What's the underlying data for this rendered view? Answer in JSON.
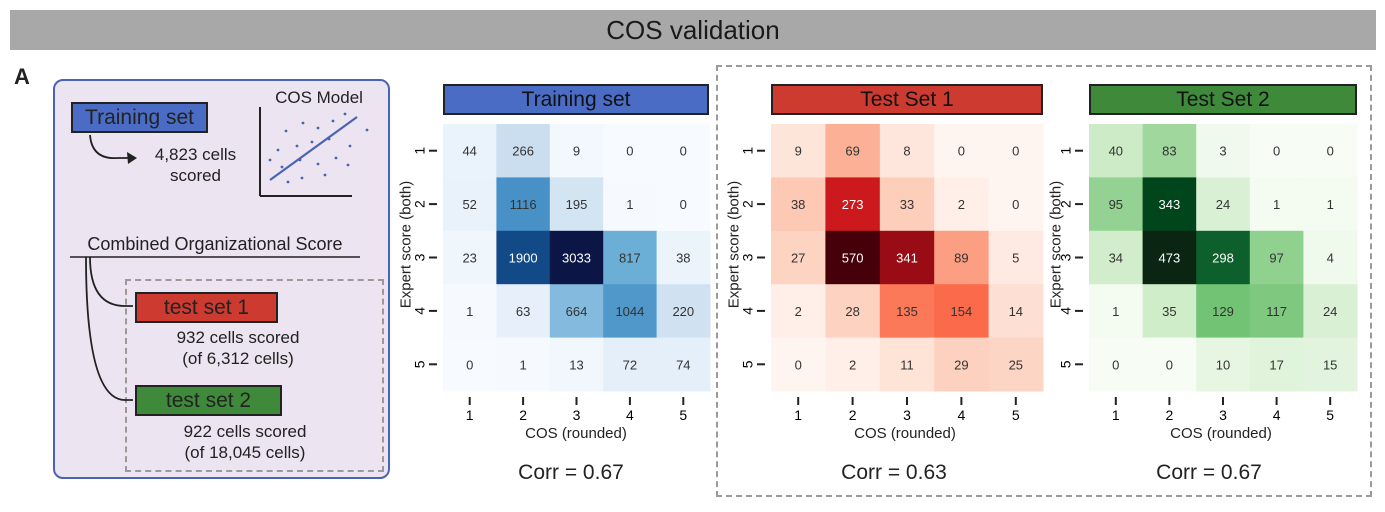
{
  "header": {
    "title": "COS validation"
  },
  "panel_label": "A",
  "left": {
    "training_label": "Training set",
    "training_cells": "4,823 cells",
    "training_scored": "scored",
    "model_label": "COS Model",
    "combined_label": "Combined Organizational Score",
    "test1_label": "test set 1",
    "test1_cells": "932 cells scored",
    "test1_of": "(of 6,312 cells)",
    "test2_label": "test set 2",
    "test2_cells": "922 cells scored",
    "test2_of": "(of 18,045 cells)",
    "colors": {
      "panel_bg": "#ece4f1",
      "panel_border": "#4a63b5",
      "training": "#4a6cc4",
      "test1": "#cc3a30",
      "test2": "#3f8a3a"
    }
  },
  "chart_data": [
    {
      "type": "heatmap",
      "title": "Training set",
      "xlabel": "COS (rounded)",
      "ylabel": "Expert score (both)",
      "x_categories": [
        "1",
        "2",
        "3",
        "4",
        "5"
      ],
      "y_categories": [
        "1",
        "2",
        "3",
        "4",
        "5"
      ],
      "values": [
        [
          44,
          266,
          9,
          0,
          0
        ],
        [
          52,
          1116,
          195,
          1,
          0
        ],
        [
          23,
          1900,
          3033,
          817,
          38
        ],
        [
          1,
          63,
          664,
          1044,
          220
        ],
        [
          0,
          1,
          13,
          72,
          74
        ]
      ],
      "annotation": "Corr = 0.67",
      "title_color": "#4a6cc4",
      "colormap": "Blues"
    },
    {
      "type": "heatmap",
      "title": "Test Set 1",
      "xlabel": "COS (rounded)",
      "ylabel": "Expert score (both)",
      "x_categories": [
        "1",
        "2",
        "3",
        "4",
        "5"
      ],
      "y_categories": [
        "1",
        "2",
        "3",
        "4",
        "5"
      ],
      "values": [
        [
          9,
          69,
          8,
          0,
          0
        ],
        [
          38,
          273,
          33,
          2,
          0
        ],
        [
          27,
          570,
          341,
          89,
          5
        ],
        [
          2,
          28,
          135,
          154,
          14
        ],
        [
          0,
          2,
          11,
          29,
          25
        ]
      ],
      "annotation": "Corr = 0.63",
      "title_color": "#cc3a30",
      "colormap": "Reds"
    },
    {
      "type": "heatmap",
      "title": "Test Set 2",
      "xlabel": "COS (rounded)",
      "ylabel": "Expert score (both)",
      "x_categories": [
        "1",
        "2",
        "3",
        "4",
        "5"
      ],
      "y_categories": [
        "1",
        "2",
        "3",
        "4",
        "5"
      ],
      "values": [
        [
          40,
          83,
          3,
          0,
          0
        ],
        [
          95,
          343,
          24,
          1,
          1
        ],
        [
          34,
          473,
          298,
          97,
          4
        ],
        [
          1,
          35,
          129,
          117,
          24
        ],
        [
          0,
          0,
          10,
          17,
          15
        ]
      ],
      "annotation": "Corr = 0.67",
      "title_color": "#3f8a3a",
      "colormap": "Greens"
    }
  ]
}
